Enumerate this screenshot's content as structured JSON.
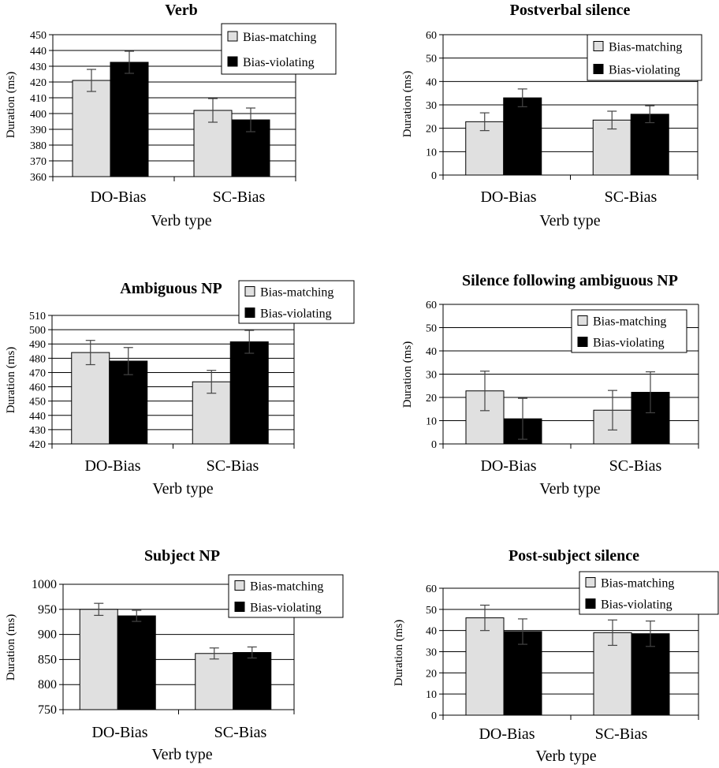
{
  "chart_data": [
    {
      "type": "bar",
      "title": "Verb",
      "xlabel": "Verb type",
      "ylabel": "Duration (ms)",
      "categories": [
        "DO-Bias",
        "SC-Bias"
      ],
      "ylim": [
        360,
        450
      ],
      "ytick_step": 10,
      "series": [
        {
          "name": "Bias-matching",
          "color": "#e0e0e0",
          "values": [
            421,
            402
          ],
          "errors": [
            7,
            7.5
          ]
        },
        {
          "name": "Bias-violating",
          "color": "#000000",
          "values": [
            432.5,
            396
          ],
          "errors": [
            7,
            7.5
          ]
        }
      ],
      "grid": true,
      "legend": "top-right"
    },
    {
      "type": "bar",
      "title": "Postverbal silence",
      "xlabel": "Verb type",
      "ylabel": "Duration (ms)",
      "categories": [
        "DO-Bias",
        "SC-Bias"
      ],
      "ylim": [
        0,
        60
      ],
      "ytick_step": 10,
      "series": [
        {
          "name": "Bias-matching",
          "color": "#e0e0e0",
          "values": [
            22.8,
            23.5
          ],
          "errors": [
            3.8,
            3.8
          ]
        },
        {
          "name": "Bias-violating",
          "color": "#000000",
          "values": [
            33,
            26
          ],
          "errors": [
            3.8,
            3.6
          ]
        }
      ],
      "grid": true,
      "legend": "top-right"
    },
    {
      "type": "bar",
      "title": "Ambiguous NP",
      "xlabel": "Verb type",
      "ylabel": "Duration (ms)",
      "categories": [
        "DO-Bias",
        "SC-Bias"
      ],
      "ylim": [
        420,
        510
      ],
      "ytick_step": 10,
      "series": [
        {
          "name": "Bias-matching",
          "color": "#e0e0e0",
          "values": [
            484,
            463.5
          ],
          "errors": [
            8.5,
            8
          ]
        },
        {
          "name": "Bias-violating",
          "color": "#000000",
          "values": [
            478,
            491.5
          ],
          "errors": [
            9.5,
            8
          ]
        }
      ],
      "grid": true,
      "legend": "top-right"
    },
    {
      "type": "bar",
      "title": "Silence following ambiguous NP",
      "xlabel": "Verb type",
      "ylabel": "Duration (ms)",
      "categories": [
        "DO-Bias",
        "SC-Bias"
      ],
      "ylim": [
        0,
        60
      ],
      "ytick_step": 10,
      "series": [
        {
          "name": "Bias-matching",
          "color": "#e0e0e0",
          "values": [
            22.8,
            14.5
          ],
          "errors": [
            8.5,
            8.5
          ]
        },
        {
          "name": "Bias-violating",
          "color": "#000000",
          "values": [
            10.8,
            22.2
          ],
          "errors": [
            8.8,
            8.8
          ]
        }
      ],
      "grid": true,
      "legend": "top-right"
    },
    {
      "type": "bar",
      "title": "Subject NP",
      "xlabel": "Verb type",
      "ylabel": "Duration (ms)",
      "categories": [
        "DO-Bias",
        "SC-Bias"
      ],
      "ylim": [
        750,
        1000
      ],
      "ytick_step": 50,
      "series": [
        {
          "name": "Bias-matching",
          "color": "#e0e0e0",
          "values": [
            950,
            862
          ],
          "errors": [
            12,
            11
          ]
        },
        {
          "name": "Bias-violating",
          "color": "#000000",
          "values": [
            937,
            864
          ],
          "errors": [
            11,
            11
          ]
        }
      ],
      "grid": true,
      "legend": "top-right"
    },
    {
      "type": "bar",
      "title": "Post-subject silence",
      "xlabel": "Verb type",
      "ylabel": "Duration (ms)",
      "categories": [
        "DO-Bias",
        "SC-Bias"
      ],
      "ylim": [
        0,
        60
      ],
      "ytick_step": 10,
      "series": [
        {
          "name": "Bias-matching",
          "color": "#e0e0e0",
          "values": [
            46,
            39
          ],
          "errors": [
            6,
            6
          ]
        },
        {
          "name": "Bias-violating",
          "color": "#000000",
          "values": [
            39.5,
            38.5
          ],
          "errors": [
            6,
            6
          ]
        }
      ],
      "grid": true,
      "legend": "top-right"
    }
  ]
}
